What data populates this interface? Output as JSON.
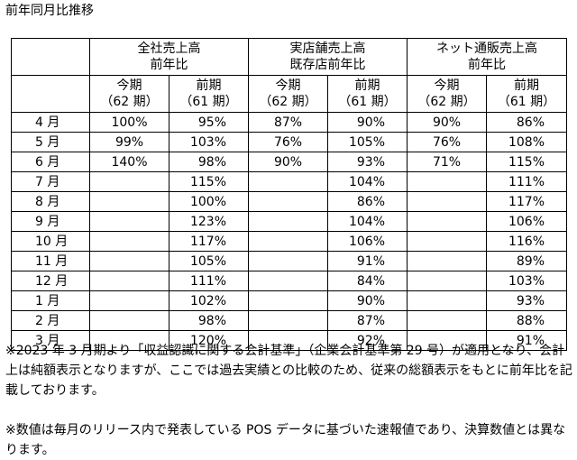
{
  "title": "前年同月比推移",
  "groups": [
    {
      "line1": "全社売上高",
      "line2": "前年比"
    },
    {
      "line1": "実店舗売上高",
      "line2": "既存店前年比"
    },
    {
      "line1": "ネット通販売上高",
      "line2": "前年比"
    }
  ],
  "sub_headers": {
    "current_line1": "今期",
    "current_line2": "（62 期）",
    "prior_line1": "前期",
    "prior_line2": "（61 期）"
  },
  "rows": [
    {
      "month": "4 月",
      "c1": "100%",
      "p1": "95%",
      "c2": "87%",
      "p2": "90%",
      "c3": "90%",
      "p3": "86%"
    },
    {
      "month": "5 月",
      "c1": "99%",
      "p1": "103%",
      "c2": "76%",
      "p2": "105%",
      "c3": "76%",
      "p3": "108%"
    },
    {
      "month": "6 月",
      "c1": "140%",
      "p1": "98%",
      "c2": "90%",
      "p2": "93%",
      "c3": "71%",
      "p3": "115%"
    },
    {
      "month": "7 月",
      "c1": "",
      "p1": "115%",
      "c2": "",
      "p2": "104%",
      "c3": "",
      "p3": "111%"
    },
    {
      "month": "8 月",
      "c1": "",
      "p1": "100%",
      "c2": "",
      "p2": "86%",
      "c3": "",
      "p3": "117%"
    },
    {
      "month": "9 月",
      "c1": "",
      "p1": "123%",
      "c2": "",
      "p2": "104%",
      "c3": "",
      "p3": "106%"
    },
    {
      "month": "10 月",
      "c1": "",
      "p1": "117%",
      "c2": "",
      "p2": "106%",
      "c3": "",
      "p3": "116%"
    },
    {
      "month": "11 月",
      "c1": "",
      "p1": "105%",
      "c2": "",
      "p2": "91%",
      "c3": "",
      "p3": "89%"
    },
    {
      "month": "12 月",
      "c1": "",
      "p1": "111%",
      "c2": "",
      "p2": "84%",
      "c3": "",
      "p3": "103%"
    },
    {
      "month": "1 月",
      "c1": "",
      "p1": "102%",
      "c2": "",
      "p2": "90%",
      "c3": "",
      "p3": "93%"
    },
    {
      "month": "2 月",
      "c1": "",
      "p1": "98%",
      "c2": "",
      "p2": "87%",
      "c3": "",
      "p3": "88%"
    },
    {
      "month": "3 月",
      "c1": "",
      "p1": "120%",
      "c2": "",
      "p2": "92%",
      "c3": "",
      "p3": "91%"
    }
  ],
  "notes": [
    "※2023 年 3 月期より「収益認識に関する会計基準」（企業会計基準第 29 号）が適用となり、会計上は純額表示となりますが、ここでは過去実績との比較のため、従来の総額表示をもとに前年比を記載しております。",
    "※数値は毎月のリリース内で発表している POS データに基づいた速報値であり、決算数値とは異なります。"
  ]
}
